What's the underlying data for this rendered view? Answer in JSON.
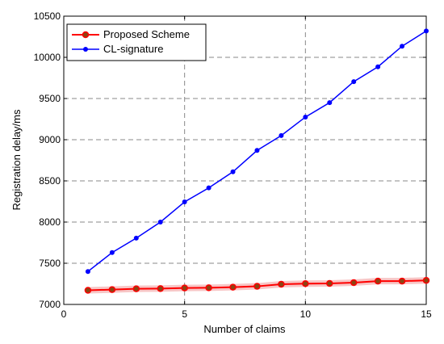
{
  "chart_data": {
    "type": "line",
    "xlabel": "Number of claims",
    "ylabel": "Registration delay/ms",
    "xlim": [
      0,
      15
    ],
    "ylim": [
      7000,
      10500
    ],
    "xticks": [
      0,
      5,
      10,
      15
    ],
    "yticks": [
      7000,
      7500,
      8000,
      8500,
      9000,
      9500,
      10000,
      10500
    ],
    "grid": true,
    "legend": "top-left",
    "x": [
      1,
      2,
      3,
      4,
      5,
      6,
      7,
      8,
      9,
      10,
      11,
      12,
      13,
      14,
      15
    ],
    "series": [
      {
        "name": "Proposed Scheme",
        "color": "#ff0000",
        "marker_face": "#8b4513",
        "values": [
          7172,
          7180,
          7190,
          7192,
          7200,
          7202,
          7210,
          7220,
          7245,
          7252,
          7255,
          7265,
          7283,
          7283,
          7292
        ]
      },
      {
        "name": "CL-signature",
        "color": "#0000ff",
        "values": [
          7400,
          7630,
          7805,
          8000,
          8245,
          8415,
          8610,
          8870,
          9050,
          9275,
          9450,
          9705,
          9885,
          10135,
          10320
        ]
      }
    ]
  }
}
